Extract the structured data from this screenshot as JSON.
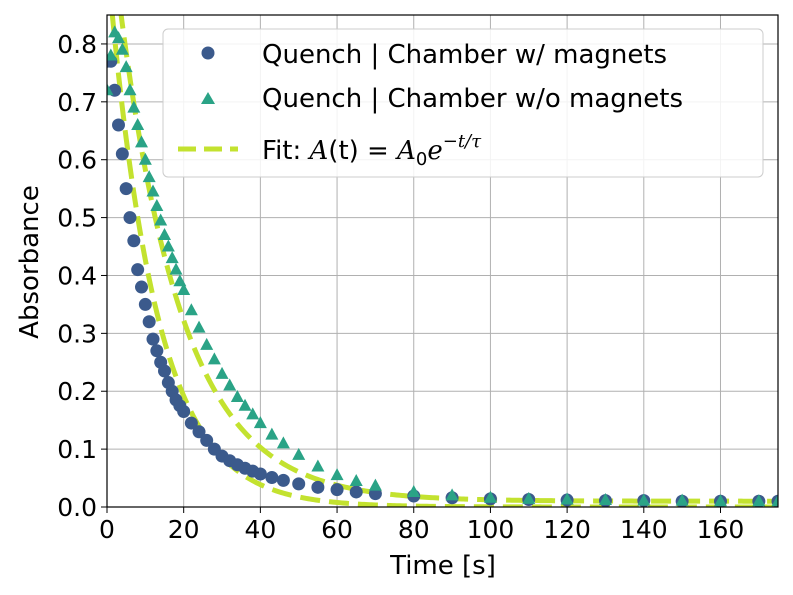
{
  "chart_data": {
    "type": "scatter",
    "xlabel": "Time [s]",
    "ylabel": "Absorbance",
    "xlim": [
      0,
      175
    ],
    "ylim": [
      0,
      0.85
    ],
    "x_ticks": [
      "0",
      "20",
      "40",
      "60",
      "80",
      "100",
      "120",
      "140",
      "160"
    ],
    "y_ticks": [
      "0.0",
      "0.1",
      "0.2",
      "0.3",
      "0.4",
      "0.5",
      "0.6",
      "0.7",
      "0.8"
    ],
    "grid": true,
    "legend_position": "top-right",
    "series": [
      {
        "name": "Quench | Chamber w/ magnets",
        "marker": "circle",
        "color": "#3b5a8c",
        "x": [
          0,
          1,
          2,
          3,
          4,
          5,
          6,
          7,
          8,
          9,
          10,
          11,
          12,
          13,
          14,
          15,
          16,
          17,
          18,
          19,
          20,
          22,
          24,
          26,
          28,
          30,
          32,
          34,
          36,
          38,
          40,
          43,
          46,
          50,
          55,
          60,
          65,
          70,
          80,
          90,
          100,
          110,
          120,
          130,
          140,
          150,
          160,
          170,
          175
        ],
        "y": [
          0.77,
          0.77,
          0.72,
          0.66,
          0.61,
          0.55,
          0.5,
          0.46,
          0.41,
          0.38,
          0.35,
          0.32,
          0.29,
          0.27,
          0.25,
          0.235,
          0.215,
          0.2,
          0.185,
          0.175,
          0.165,
          0.145,
          0.13,
          0.115,
          0.1,
          0.088,
          0.08,
          0.073,
          0.067,
          0.062,
          0.057,
          0.051,
          0.046,
          0.04,
          0.034,
          0.03,
          0.026,
          0.023,
          0.019,
          0.016,
          0.014,
          0.013,
          0.012,
          0.011,
          0.011,
          0.01,
          0.01,
          0.01,
          0.01
        ]
      },
      {
        "name": "Quench | Chamber w/o magnets",
        "marker": "triangle",
        "color": "#2aa386",
        "x": [
          0,
          1,
          2,
          3,
          4,
          5,
          6,
          7,
          8,
          9,
          10,
          11,
          12,
          13,
          14,
          15,
          16,
          17,
          18,
          19,
          20,
          22,
          24,
          26,
          28,
          30,
          32,
          34,
          36,
          38,
          40,
          43,
          46,
          50,
          55,
          60,
          65,
          70,
          80,
          90,
          100,
          110,
          120,
          130,
          140,
          150,
          160,
          170,
          175
        ],
        "y": [
          0.72,
          0.78,
          0.82,
          0.81,
          0.79,
          0.76,
          0.72,
          0.69,
          0.66,
          0.63,
          0.6,
          0.57,
          0.545,
          0.52,
          0.495,
          0.47,
          0.45,
          0.43,
          0.41,
          0.39,
          0.375,
          0.34,
          0.31,
          0.28,
          0.255,
          0.23,
          0.21,
          0.19,
          0.175,
          0.16,
          0.145,
          0.125,
          0.11,
          0.09,
          0.07,
          0.055,
          0.045,
          0.037,
          0.026,
          0.02,
          0.016,
          0.014,
          0.013,
          0.012,
          0.011,
          0.011,
          0.01,
          0.01,
          0.01
        ]
      }
    ],
    "fits": [
      {
        "A0": 0.95,
        "tau": 12.5,
        "offset": 0.0
      },
      {
        "A0": 1.05,
        "tau": 16.5,
        "offset": 0.01
      }
    ],
    "fit_style": {
      "color": "#c3e22f",
      "dash": "dashed"
    },
    "legend": {
      "entry1": "Quench | Chamber w/ magnets",
      "entry2": "Quench | Chamber w/o magnets",
      "entry3_prefix": "Fit: ",
      "entry3_lhs": "A",
      "entry3_arg": "(t)",
      "entry3_eq": " = ",
      "entry3_rhs_A": "A",
      "entry3_rhs_sub": "0",
      "entry3_rhs_e": "e",
      "entry3_exp": "−t/τ"
    }
  }
}
